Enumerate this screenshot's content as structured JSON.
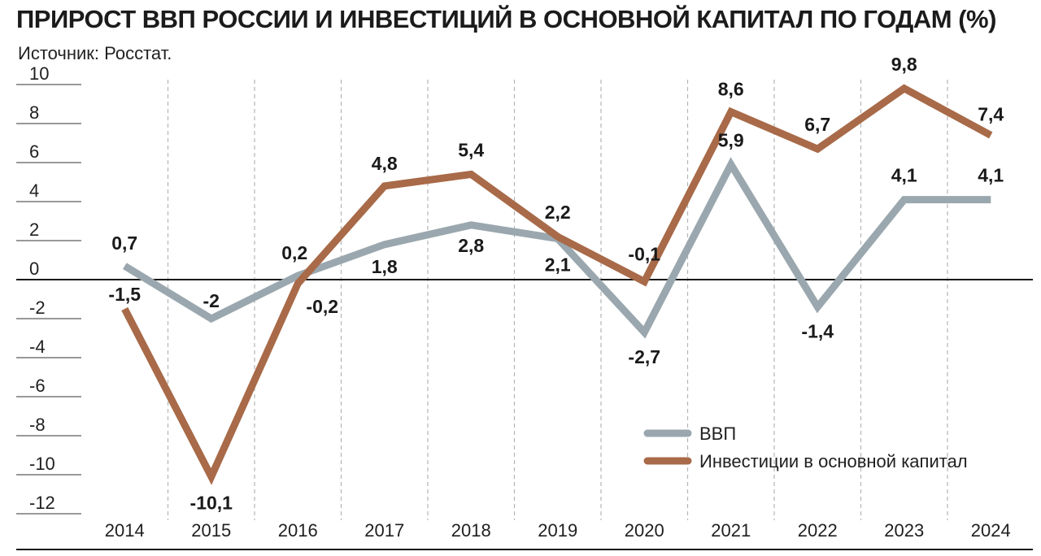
{
  "title": "ПРИРОСТ ВВП РОССИИ И ИНВЕСТИЦИЙ В ОСНОВНОЙ КАПИТАЛ ПО ГОДАМ (%)",
  "subtitle": "Источник: Росстат.",
  "colors": {
    "gdp": "#9aa7ae",
    "investment": "#a86a48",
    "text": "#1a1a1a",
    "zero_line": "#1a1a1a",
    "grid": "#b5b5b5"
  },
  "chart_data": {
    "type": "line",
    "x": [
      "2014",
      "2015",
      "2016",
      "2017",
      "2018",
      "2019",
      "2020",
      "2021",
      "2022",
      "2023",
      "2024"
    ],
    "ylim": [
      -12,
      10
    ],
    "yticks": [
      "10",
      "8",
      "6",
      "4",
      "2",
      "0",
      "-2",
      "-4",
      "-6",
      "-8",
      "-10",
      "-12"
    ],
    "ytick_values": [
      10,
      8,
      6,
      4,
      2,
      0,
      -2,
      -4,
      -6,
      -8,
      -10,
      -12
    ],
    "grid": "vertical dashed",
    "legend_position": "bottom-right",
    "series": [
      {
        "key": "gdp",
        "name": "ВВП",
        "values": [
          0.7,
          -2,
          0.2,
          1.8,
          2.8,
          2.1,
          -2.7,
          5.9,
          -1.4,
          4.1,
          4.1
        ],
        "labels": [
          "0,7",
          "-2",
          "0,2",
          "1,8",
          "2,8",
          "2,1",
          "-2,7",
          "5,9",
          "-1,4",
          "4,1",
          "4,1"
        ]
      },
      {
        "key": "investment",
        "name": "Инвестиции в основной капитал",
        "values": [
          -1.5,
          -10.1,
          -0.2,
          4.8,
          5.4,
          2.2,
          -0.1,
          8.6,
          6.7,
          9.8,
          7.4
        ],
        "labels": [
          "-1,5",
          "-10,1",
          "-0,2",
          "4,8",
          "5,4",
          "2,2",
          "-0,1",
          "8,6",
          "6,7",
          "9,8",
          "7,4"
        ]
      }
    ]
  }
}
